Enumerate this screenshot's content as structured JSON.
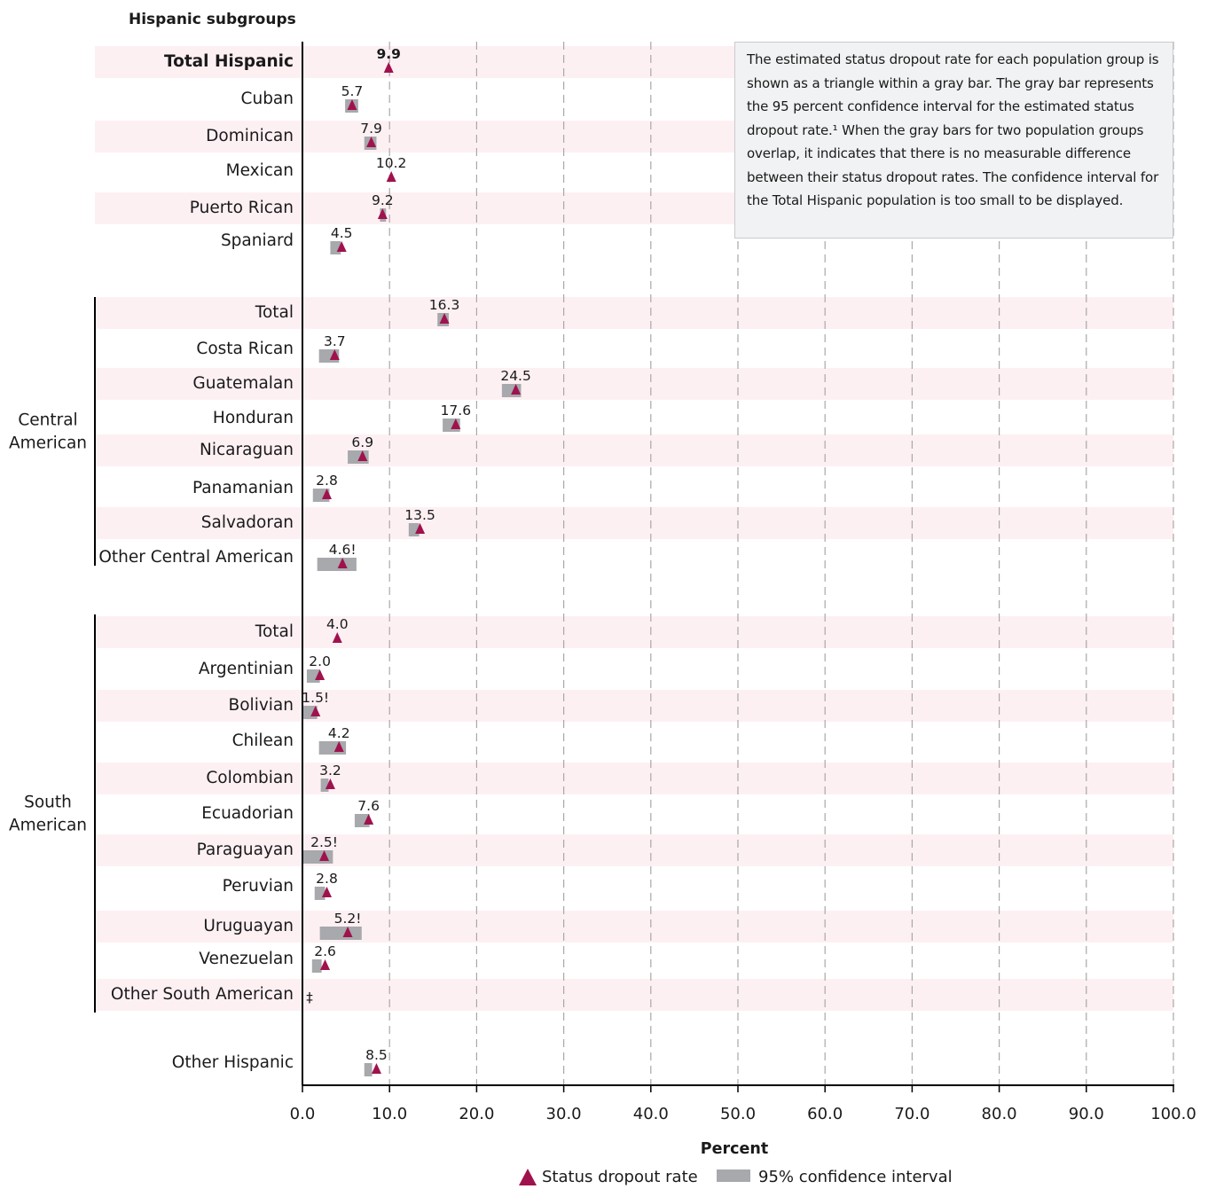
{
  "chart_data": {
    "type": "dot-with-interval",
    "y_header": "Hispanic subgroups",
    "xlabel": "Percent",
    "xlim": [
      0,
      100
    ],
    "x_ticks": [
      "0.0",
      "10.0",
      "20.0",
      "30.0",
      "40.0",
      "50.0",
      "60.0",
      "70.0",
      "80.0",
      "90.0",
      "100.0"
    ],
    "grid": "vertical-dashed",
    "legend": {
      "placement": "bottom-center",
      "items": [
        {
          "label": "Status dropout rate",
          "marker": "triangle",
          "color": "#a0124d"
        },
        {
          "label": "95% confidence interval",
          "marker": "bar",
          "color": "#a7a9ac"
        }
      ]
    },
    "note": "The estimated status dropout rate for each population group is shown as a triangle within a gray bar. The gray bar represents the 95 percent confidence interval for the estimated status dropout rate.¹ When the gray bars for two population groups overlap, it indicates that there is no measurable difference between their status dropout rates. The confidence interval for the Total Hispanic population is too small to be displayed.",
    "groups": [
      {
        "name": "Central American",
        "rows": [
          2,
          9
        ]
      },
      {
        "name": "South American",
        "rows": [
          10,
          20
        ]
      }
    ],
    "rows": [
      {
        "label": "Total Hispanic",
        "value": 9.9,
        "label_text": "9.9",
        "ci": null,
        "bold": true
      },
      {
        "label": "Cuban",
        "value": 5.7,
        "label_text": "5.7",
        "ci": [
          4.9,
          6.4
        ]
      },
      {
        "label": "Dominican",
        "value": 7.9,
        "label_text": "7.9",
        "ci": [
          7.1,
          8.5
        ]
      },
      {
        "label": "Mexican",
        "value": 10.2,
        "label_text": "10.2",
        "ci": null
      },
      {
        "label": "Puerto Rican",
        "value": 9.2,
        "label_text": "9.2",
        "ci": [
          8.9,
          9.6
        ]
      },
      {
        "label": "Spaniard",
        "value": 4.5,
        "label_text": "4.5",
        "ci": [
          3.2,
          4.4
        ]
      },
      {
        "label": "Total",
        "value": 16.3,
        "label_text": "16.3",
        "ci": [
          15.5,
          16.8
        ]
      },
      {
        "label": "Costa Rican",
        "value": 3.7,
        "label_text": "3.7",
        "ci": [
          1.9,
          4.2
        ]
      },
      {
        "label": "Guatemalan",
        "value": 24.5,
        "label_text": "24.5",
        "ci": [
          22.9,
          25.1
        ]
      },
      {
        "label": "Honduran",
        "value": 17.6,
        "label_text": "17.6",
        "ci": [
          16.1,
          18.1
        ]
      },
      {
        "label": "Nicaraguan",
        "value": 6.9,
        "label_text": "6.9",
        "ci": [
          5.2,
          7.6
        ]
      },
      {
        "label": "Panamanian",
        "value": 2.8,
        "label_text": "2.8",
        "ci": [
          1.2,
          3.1
        ]
      },
      {
        "label": "Salvadoran",
        "value": 13.5,
        "label_text": "13.5",
        "ci": [
          12.2,
          13.4
        ]
      },
      {
        "label": "Other Central American",
        "value": 4.6,
        "label_text": "4.6!",
        "ci": [
          1.7,
          6.2
        ]
      },
      {
        "label": "Total",
        "value": 4.0,
        "label_text": "4.0",
        "ci": null
      },
      {
        "label": "Argentinian",
        "value": 2.0,
        "label_text": "2.0",
        "ci": [
          0.5,
          2.0
        ]
      },
      {
        "label": "Bolivian",
        "value": 1.5,
        "label_text": "1.5!",
        "ci": [
          0.0,
          1.7
        ]
      },
      {
        "label": "Chilean",
        "value": 4.2,
        "label_text": "4.2",
        "ci": [
          1.9,
          5.0
        ]
      },
      {
        "label": "Colombian",
        "value": 3.2,
        "label_text": "3.2",
        "ci": [
          2.1,
          3.0
        ]
      },
      {
        "label": "Ecuadorian",
        "value": 7.6,
        "label_text": "7.6",
        "ci": [
          6.0,
          7.7
        ]
      },
      {
        "label": "Paraguayan",
        "value": 2.5,
        "label_text": "2.5!",
        "ci": [
          0.0,
          3.5
        ]
      },
      {
        "label": "Peruvian",
        "value": 2.8,
        "label_text": "2.8",
        "ci": [
          1.4,
          2.6
        ]
      },
      {
        "label": "Uruguayan",
        "value": 5.2,
        "label_text": "5.2!",
        "ci": [
          2.0,
          6.8
        ]
      },
      {
        "label": "Venezuelan",
        "value": 2.6,
        "label_text": "2.6",
        "ci": [
          1.1,
          2.2
        ]
      },
      {
        "label": "Other South American",
        "value": null,
        "label_text": "‡",
        "ci": null
      },
      {
        "label": "Other Hispanic",
        "value": 8.5,
        "label_text": "8.5",
        "ci": [
          7.1,
          8.0
        ]
      }
    ]
  },
  "colors": {
    "triangle": "#a0124d",
    "ci_bar": "#a7a9ac",
    "band": "#fdf0f3",
    "grid": "#a8a8a8",
    "axis": "#000000",
    "text": "#1a1a1a"
  }
}
